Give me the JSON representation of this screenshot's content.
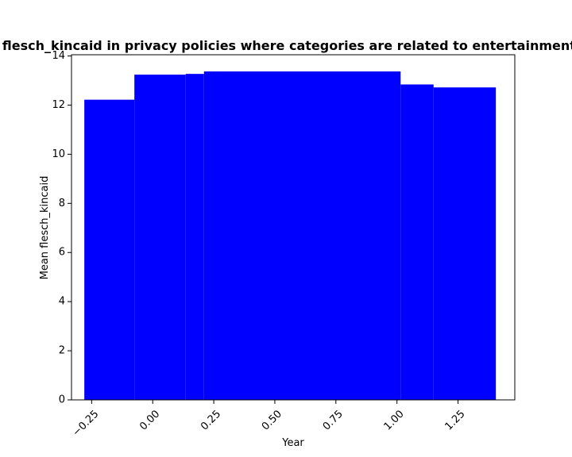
{
  "chart_data": {
    "type": "bar",
    "title": "Mean flesch_kincaid in privacy policies where categories are related to entertainment;humor",
    "xlabel": "Year",
    "ylabel": "Mean flesch_kincaid",
    "xlim": [
      -0.3325,
      1.4825
    ],
    "ylim": [
      0,
      14.05
    ],
    "bar_color": "#0000ff",
    "bars": [
      {
        "x_start": -0.28,
        "x_end": -0.075,
        "value": 12.22
      },
      {
        "x_start": -0.075,
        "x_end": 0.135,
        "value": 13.24
      },
      {
        "x_start": 0.135,
        "x_end": 0.21,
        "value": 13.27
      },
      {
        "x_start": 0.21,
        "x_end": 1.015,
        "value": 13.37
      },
      {
        "x_start": 1.015,
        "x_end": 1.15,
        "value": 12.84
      },
      {
        "x_start": 1.15,
        "x_end": 1.405,
        "value": 12.72
      }
    ],
    "x_ticks": [
      -0.25,
      0.0,
      0.25,
      0.5,
      0.75,
      1.0,
      1.25
    ],
    "x_tick_labels": [
      "−0.25",
      "0.00",
      "0.25",
      "0.50",
      "0.75",
      "1.00",
      "1.25"
    ],
    "y_ticks": [
      0,
      2,
      4,
      6,
      8,
      10,
      12,
      14
    ],
    "y_tick_labels": [
      "0",
      "2",
      "4",
      "6",
      "8",
      "10",
      "12",
      "14"
    ],
    "grid": false,
    "legend": "none"
  }
}
